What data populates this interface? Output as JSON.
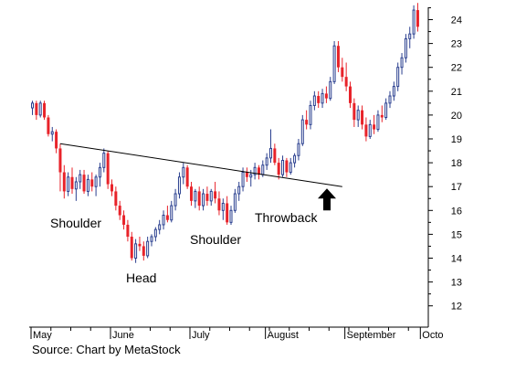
{
  "chart_data": {
    "type": "candlestick",
    "title": "",
    "xlabel": "",
    "ylabel": "",
    "ylim": [
      11,
      24.8
    ],
    "y_ticks": [
      12,
      13,
      14,
      15,
      16,
      17,
      18,
      19,
      20,
      21,
      22,
      23,
      24
    ],
    "x_months": [
      "May",
      "June",
      "July",
      "August",
      "September",
      "Octo"
    ],
    "x_month_start_index": [
      0,
      20,
      40,
      59,
      79,
      98
    ],
    "grid": false,
    "up_color": "#2a3f8f",
    "down_color": "#e8232a",
    "candles": [
      [
        20.3,
        20.6,
        20.0,
        20.5
      ],
      [
        20.5,
        20.6,
        19.8,
        20.0
      ],
      [
        20.0,
        20.6,
        19.9,
        20.5
      ],
      [
        20.5,
        20.6,
        19.8,
        19.9
      ],
      [
        19.9,
        20.0,
        19.1,
        19.2
      ],
      [
        19.2,
        19.5,
        18.9,
        19.3
      ],
      [
        19.3,
        19.4,
        18.4,
        18.6
      ],
      [
        18.6,
        18.8,
        16.8,
        17.6
      ],
      [
        17.6,
        17.9,
        16.5,
        16.8
      ],
      [
        16.8,
        17.6,
        16.6,
        17.4
      ],
      [
        17.4,
        17.8,
        16.7,
        16.9
      ],
      [
        16.9,
        17.4,
        16.4,
        17.2
      ],
      [
        17.2,
        17.7,
        16.9,
        17.5
      ],
      [
        17.5,
        17.7,
        16.7,
        16.8
      ],
      [
        16.8,
        17.5,
        16.6,
        17.3
      ],
      [
        17.3,
        17.6,
        16.8,
        17.0
      ],
      [
        17.0,
        17.5,
        16.6,
        17.4
      ],
      [
        17.4,
        18.0,
        17.0,
        17.8
      ],
      [
        17.8,
        18.6,
        17.6,
        18.4
      ],
      [
        18.4,
        18.5,
        16.9,
        17.1
      ],
      [
        17.1,
        17.3,
        16.6,
        16.8
      ],
      [
        16.8,
        17.0,
        16.0,
        16.2
      ],
      [
        16.2,
        16.4,
        15.6,
        15.8
      ],
      [
        15.8,
        16.0,
        15.2,
        15.4
      ],
      [
        15.4,
        15.6,
        14.7,
        14.9
      ],
      [
        14.9,
        15.1,
        13.9,
        14.0
      ],
      [
        14.0,
        14.8,
        13.8,
        14.6
      ],
      [
        14.6,
        14.9,
        14.3,
        14.5
      ],
      [
        14.5,
        14.7,
        13.9,
        14.1
      ],
      [
        14.1,
        14.9,
        14.0,
        14.7
      ],
      [
        14.7,
        15.0,
        14.5,
        14.9
      ],
      [
        14.9,
        15.3,
        14.7,
        15.2
      ],
      [
        15.2,
        15.6,
        15.0,
        15.4
      ],
      [
        15.4,
        16.0,
        15.2,
        15.8
      ],
      [
        15.8,
        16.2,
        15.5,
        15.6
      ],
      [
        15.6,
        16.4,
        15.5,
        16.2
      ],
      [
        16.2,
        16.9,
        16.0,
        16.7
      ],
      [
        16.7,
        17.6,
        16.5,
        17.4
      ],
      [
        17.4,
        18.0,
        17.1,
        17.8
      ],
      [
        17.8,
        17.9,
        16.9,
        17.0
      ],
      [
        17.0,
        17.2,
        16.2,
        16.4
      ],
      [
        16.4,
        16.9,
        16.1,
        16.8
      ],
      [
        16.8,
        17.0,
        16.0,
        16.2
      ],
      [
        16.2,
        16.9,
        16.0,
        16.7
      ],
      [
        16.7,
        17.0,
        16.2,
        16.4
      ],
      [
        16.4,
        16.9,
        16.2,
        16.8
      ],
      [
        16.8,
        17.2,
        16.3,
        16.5
      ],
      [
        16.5,
        16.8,
        15.8,
        16.0
      ],
      [
        16.0,
        16.5,
        15.6,
        16.3
      ],
      [
        16.3,
        16.6,
        15.4,
        15.5
      ],
      [
        15.5,
        16.2,
        15.4,
        16.0
      ],
      [
        16.0,
        16.9,
        15.9,
        16.7
      ],
      [
        16.7,
        17.2,
        16.4,
        17.0
      ],
      [
        17.0,
        17.8,
        16.8,
        17.6
      ],
      [
        17.6,
        17.8,
        17.2,
        17.4
      ],
      [
        17.4,
        17.7,
        17.0,
        17.5
      ],
      [
        17.5,
        18.0,
        17.3,
        17.8
      ],
      [
        17.8,
        17.9,
        17.3,
        17.5
      ],
      [
        17.5,
        18.1,
        17.4,
        17.9
      ],
      [
        17.9,
        18.4,
        17.7,
        18.2
      ],
      [
        18.2,
        19.4,
        18.0,
        18.6
      ],
      [
        18.6,
        18.8,
        17.9,
        18.0
      ],
      [
        18.0,
        18.2,
        17.3,
        17.5
      ],
      [
        17.5,
        18.3,
        17.4,
        18.1
      ],
      [
        18.1,
        18.2,
        17.4,
        17.6
      ],
      [
        17.6,
        18.2,
        17.5,
        18.0
      ],
      [
        18.0,
        18.4,
        17.8,
        18.3
      ],
      [
        18.3,
        19.0,
        18.1,
        18.8
      ],
      [
        18.8,
        20.0,
        18.7,
        19.8
      ],
      [
        19.8,
        20.2,
        19.4,
        19.6
      ],
      [
        19.6,
        20.6,
        19.4,
        20.4
      ],
      [
        20.4,
        21.0,
        20.2,
        20.8
      ],
      [
        20.8,
        21.0,
        20.3,
        20.5
      ],
      [
        20.5,
        21.1,
        20.3,
        20.9
      ],
      [
        20.9,
        21.2,
        20.5,
        20.7
      ],
      [
        20.7,
        21.6,
        20.6,
        21.4
      ],
      [
        21.4,
        23.1,
        21.3,
        22.9
      ],
      [
        22.9,
        23.1,
        21.8,
        22.0
      ],
      [
        22.0,
        22.4,
        21.4,
        21.6
      ],
      [
        21.6,
        22.2,
        21.0,
        21.2
      ],
      [
        21.2,
        21.4,
        20.3,
        20.5
      ],
      [
        20.5,
        20.7,
        19.5,
        19.8
      ],
      [
        19.8,
        20.4,
        19.5,
        20.2
      ],
      [
        20.2,
        20.4,
        19.4,
        19.6
      ],
      [
        19.6,
        19.9,
        18.9,
        19.1
      ],
      [
        19.1,
        19.8,
        19.0,
        19.6
      ],
      [
        19.6,
        20.0,
        19.2,
        19.4
      ],
      [
        19.4,
        20.2,
        19.3,
        20.0
      ],
      [
        20.0,
        20.4,
        19.7,
        19.9
      ],
      [
        19.9,
        20.7,
        19.8,
        20.5
      ],
      [
        20.5,
        21.0,
        20.3,
        20.8
      ],
      [
        20.8,
        21.4,
        20.6,
        21.2
      ],
      [
        21.2,
        22.2,
        21.0,
        22.0
      ],
      [
        22.0,
        22.6,
        21.7,
        22.4
      ],
      [
        22.4,
        23.4,
        22.2,
        23.2
      ],
      [
        23.2,
        23.7,
        22.8,
        23.4
      ],
      [
        23.4,
        24.6,
        23.2,
        24.4
      ],
      [
        24.4,
        24.7,
        23.5,
        23.7
      ]
    ],
    "trendline": {
      "x_start": 7,
      "y_start": 18.8,
      "x_end": 78,
      "y_end": 17.0
    },
    "throwback_arrow": {
      "x": 70,
      "y_tip": 17.0
    }
  },
  "annotations": {
    "left_shoulder": "Shoulder",
    "head": "Head",
    "right_shoulder": "Shoulder",
    "throwback": "Throwback"
  },
  "source": "Source: Chart by MetaStock"
}
